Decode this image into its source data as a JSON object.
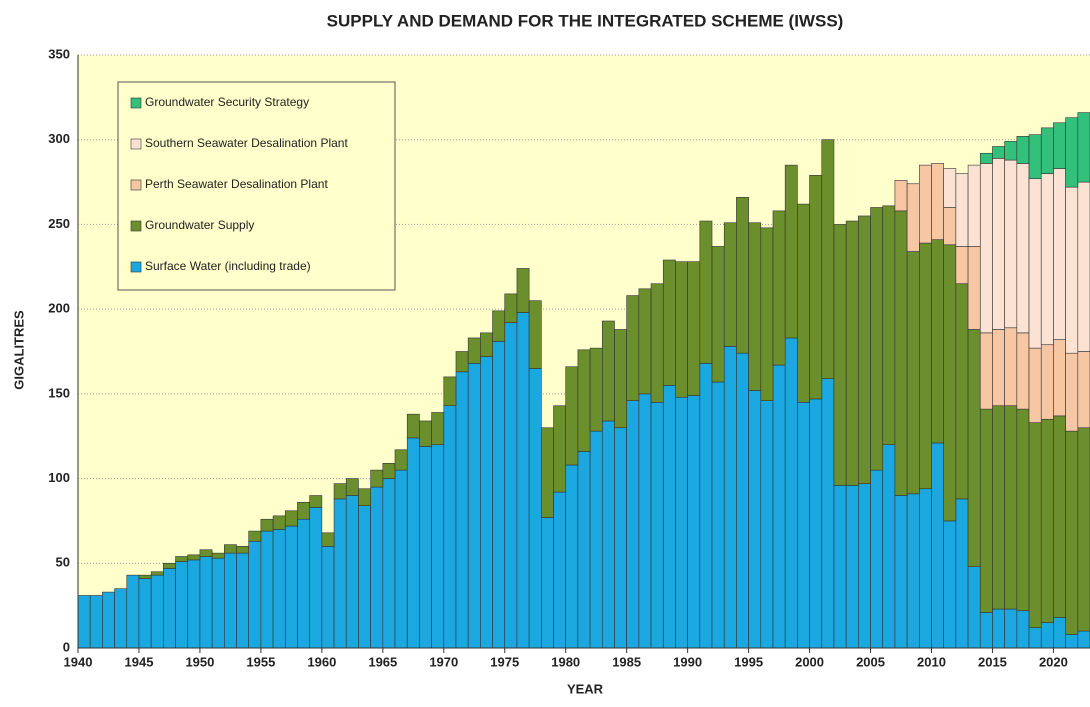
{
  "chart_data": {
    "type": "stacked_bar",
    "title": "SUPPLY AND DEMAND FOR THE INTEGRATED SCHEME (IWSS)",
    "x_label": "YEAR",
    "y_label": "GIGALITRES",
    "categories": [
      "1940",
      null,
      null,
      null,
      null,
      "1945",
      null,
      null,
      null,
      null,
      "1950",
      null,
      null,
      null,
      null,
      "1955",
      null,
      null,
      null,
      null,
      "1960",
      null,
      null,
      null,
      null,
      "1965",
      null,
      null,
      null,
      null,
      "1970",
      null,
      null,
      null,
      null,
      "1975",
      null,
      null,
      null,
      null,
      "1980",
      null,
      null,
      null,
      null,
      "1985",
      null,
      null,
      null,
      null,
      "1990",
      null,
      null,
      null,
      null,
      "1995",
      null,
      null,
      null,
      null,
      "2000",
      null,
      null,
      null,
      null,
      "2005",
      null,
      null,
      null,
      null,
      "2010",
      null,
      null,
      null,
      null,
      "2015",
      null,
      null,
      null,
      null,
      "2020",
      null,
      null
    ],
    "series": [
      {
        "name": "Surface Water (including trade)",
        "color": "#1ba8e0",
        "values": [
          31,
          31,
          33,
          35,
          43,
          41,
          43,
          47,
          51,
          52,
          54,
          53,
          56,
          56,
          63,
          69,
          70,
          72,
          76,
          83,
          60,
          88,
          90,
          84,
          95,
          100,
          105,
          124,
          119,
          120,
          143,
          163,
          168,
          172,
          181,
          192,
          198,
          165,
          77,
          92,
          108,
          116,
          128,
          134,
          130,
          146,
          150,
          145,
          155,
          148,
          149,
          168,
          157,
          178,
          174,
          152,
          146,
          167,
          183,
          145,
          147,
          159,
          96,
          96,
          97,
          105,
          120,
          90,
          91,
          94,
          121,
          75,
          88,
          48,
          21,
          23,
          23,
          22,
          12,
          15,
          18,
          8,
          10
        ]
      },
      {
        "name": "Groundwater Supply",
        "color": "#6b8f2c",
        "values": [
          0,
          0,
          0,
          0,
          0,
          2,
          2,
          3,
          3,
          3,
          4,
          3,
          5,
          4,
          6,
          7,
          8,
          9,
          10,
          7,
          8,
          9,
          10,
          10,
          10,
          9,
          12,
          14,
          15,
          19,
          17,
          12,
          15,
          14,
          18,
          17,
          26,
          40,
          53,
          51,
          58,
          60,
          49,
          59,
          58,
          62,
          62,
          70,
          74,
          80,
          79,
          84,
          80,
          73,
          92,
          99,
          102,
          91,
          102,
          117,
          132,
          141,
          154,
          156,
          158,
          155,
          141,
          168,
          143,
          145,
          120,
          163,
          127,
          140,
          120,
          120,
          120,
          119,
          121,
          120,
          119,
          120,
          120
        ]
      },
      {
        "name": "Perth Seawater Desalination Plant",
        "color": "#f7c6a3",
        "values": [
          0,
          0,
          0,
          0,
          0,
          0,
          0,
          0,
          0,
          0,
          0,
          0,
          0,
          0,
          0,
          0,
          0,
          0,
          0,
          0,
          0,
          0,
          0,
          0,
          0,
          0,
          0,
          0,
          0,
          0,
          0,
          0,
          0,
          0,
          0,
          0,
          0,
          0,
          0,
          0,
          0,
          0,
          0,
          0,
          0,
          0,
          0,
          0,
          0,
          0,
          0,
          0,
          0,
          0,
          0,
          0,
          0,
          0,
          0,
          0,
          0,
          0,
          0,
          0,
          0,
          0,
          0,
          18,
          40,
          46,
          45,
          22,
          22,
          49,
          45,
          45,
          46,
          45,
          44,
          44,
          45,
          46,
          45
        ]
      },
      {
        "name": "Southern Seawater Desalination Plant",
        "color": "#fbe2d2",
        "values": [
          0,
          0,
          0,
          0,
          0,
          0,
          0,
          0,
          0,
          0,
          0,
          0,
          0,
          0,
          0,
          0,
          0,
          0,
          0,
          0,
          0,
          0,
          0,
          0,
          0,
          0,
          0,
          0,
          0,
          0,
          0,
          0,
          0,
          0,
          0,
          0,
          0,
          0,
          0,
          0,
          0,
          0,
          0,
          0,
          0,
          0,
          0,
          0,
          0,
          0,
          0,
          0,
          0,
          0,
          0,
          0,
          0,
          0,
          0,
          0,
          0,
          0,
          0,
          0,
          0,
          0,
          0,
          0,
          0,
          0,
          0,
          23,
          43,
          48,
          100,
          101,
          99,
          100,
          100,
          101,
          101,
          98,
          100
        ]
      },
      {
        "name": "Groundwater Security Strategy",
        "color": "#33c07a",
        "values": [
          0,
          0,
          0,
          0,
          0,
          0,
          0,
          0,
          0,
          0,
          0,
          0,
          0,
          0,
          0,
          0,
          0,
          0,
          0,
          0,
          0,
          0,
          0,
          0,
          0,
          0,
          0,
          0,
          0,
          0,
          0,
          0,
          0,
          0,
          0,
          0,
          0,
          0,
          0,
          0,
          0,
          0,
          0,
          0,
          0,
          0,
          0,
          0,
          0,
          0,
          0,
          0,
          0,
          0,
          0,
          0,
          0,
          0,
          0,
          0,
          0,
          0,
          0,
          0,
          0,
          0,
          0,
          0,
          0,
          0,
          0,
          0,
          0,
          0,
          6,
          7,
          11,
          16,
          26,
          27,
          27,
          41,
          41
        ]
      }
    ],
    "ylim": [
      0,
      350
    ],
    "yticks": [
      0,
      50,
      100,
      150,
      200,
      250,
      300,
      350
    ],
    "grid": true,
    "plot_background": "#ffffcc"
  }
}
